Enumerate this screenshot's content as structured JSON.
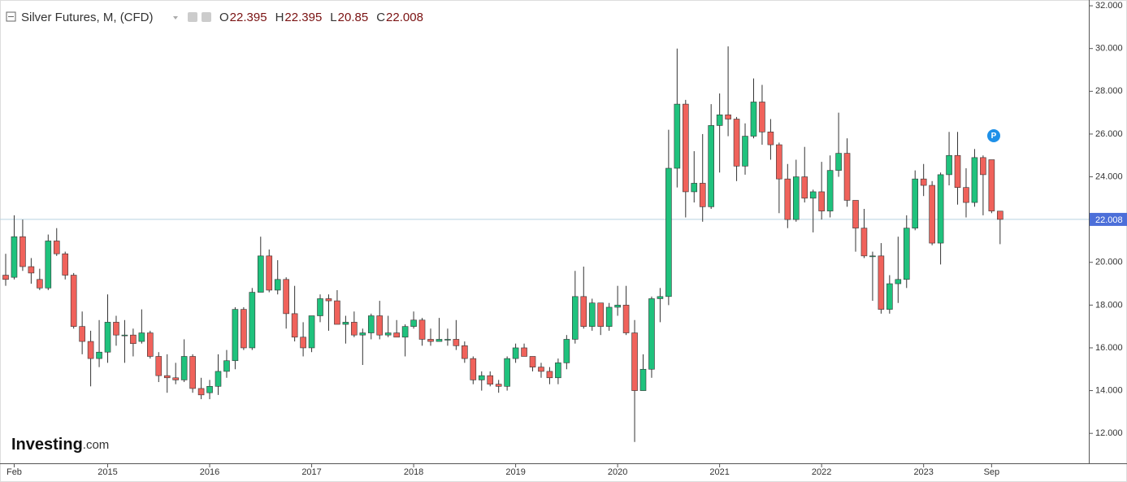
{
  "chart_data": {
    "type": "candlestick",
    "title": "Silver Futures, M, (CFD)",
    "ohlc_letters": [
      "O",
      "H",
      "L",
      "C"
    ],
    "logo": [
      "Investing",
      ".com"
    ],
    "up_color": "#1fc27d",
    "down_color": "#f0625b",
    "last_line_color": "#b9d3e0",
    "last_label_color": "#4c6fd9",
    "ylim": [
      10.6,
      32.27
    ],
    "yticks": [
      {
        "value": 12,
        "label": "12.000"
      },
      {
        "value": 14,
        "label": "14.000"
      },
      {
        "value": 16,
        "label": "16.000"
      },
      {
        "value": 18,
        "label": "18.000"
      },
      {
        "value": 20,
        "label": "20.000"
      },
      {
        "value": 22,
        "label": "22.000"
      },
      {
        "value": 24,
        "label": "24.000"
      },
      {
        "value": 26,
        "label": "26.000"
      },
      {
        "value": 28,
        "label": "28.000"
      },
      {
        "value": 30,
        "label": "30.000"
      },
      {
        "value": 32,
        "label": "32.000"
      }
    ],
    "x_labels": [
      {
        "index": 1,
        "label": "Feb"
      },
      {
        "index": 12,
        "label": "2015"
      },
      {
        "index": 24,
        "label": "2016"
      },
      {
        "index": 36,
        "label": "2017"
      },
      {
        "index": 48,
        "label": "2018"
      },
      {
        "index": 60,
        "label": "2019"
      },
      {
        "index": 72,
        "label": "2020"
      },
      {
        "index": 84,
        "label": "2021"
      },
      {
        "index": 96,
        "label": "2022"
      },
      {
        "index": 108,
        "label": "2023"
      },
      {
        "index": 116,
        "label": "Sep"
      }
    ],
    "open": [
      19.4,
      19.3,
      21.2,
      19.8,
      19.2,
      18.8,
      21.0,
      20.4,
      19.4,
      17.0,
      16.3,
      15.5,
      15.8,
      17.2,
      16.6,
      16.6,
      16.3,
      16.7,
      15.6,
      14.7,
      14.6,
      14.5,
      15.6,
      14.1,
      13.9,
      14.2,
      14.9,
      15.4,
      17.8,
      16.0,
      18.6,
      20.3,
      18.7,
      19.2,
      17.6,
      16.5,
      16.0,
      17.5,
      18.3,
      18.2,
      17.1,
      17.2,
      16.6,
      16.7,
      17.5,
      16.6,
      16.7,
      16.5,
      17.0,
      17.3,
      16.4,
      16.3,
      16.4,
      16.4,
      16.1,
      15.5,
      14.5,
      14.7,
      14.3,
      14.2,
      15.5,
      16.0,
      15.6,
      15.1,
      14.9,
      14.6,
      15.3,
      16.4,
      18.4,
      17.0,
      18.1,
      17.0,
      17.9,
      18.0,
      16.7,
      14.0,
      15.0,
      18.3,
      18.4,
      24.4,
      27.4,
      23.3,
      23.7,
      22.6,
      26.4,
      26.9,
      26.7,
      24.5,
      25.9,
      27.5,
      26.1,
      25.5,
      23.9,
      22.0,
      24.0,
      23.0,
      23.3,
      22.4,
      24.3,
      25.1,
      22.9,
      21.6,
      20.3,
      20.3,
      17.8,
      19.0,
      19.2,
      21.6,
      23.9,
      23.6,
      20.9,
      24.1,
      25.0,
      23.5,
      22.8,
      24.9,
      24.8,
      22.395
    ],
    "high": [
      20.4,
      22.2,
      22.0,
      20.2,
      19.7,
      21.3,
      21.6,
      20.5,
      19.5,
      17.7,
      16.8,
      17.3,
      18.5,
      17.5,
      17.3,
      16.9,
      17.8,
      16.8,
      15.8,
      15.7,
      15.3,
      16.4,
      15.7,
      14.6,
      14.5,
      15.7,
      15.9,
      17.9,
      17.9,
      18.8,
      21.2,
      20.6,
      20.1,
      19.3,
      18.9,
      17.2,
      17.3,
      18.5,
      18.5,
      18.7,
      17.5,
      17.7,
      16.9,
      17.6,
      18.2,
      17.5,
      17.3,
      17.1,
      17.7,
      17.4,
      16.9,
      17.4,
      16.9,
      17.3,
      16.3,
      15.6,
      14.9,
      14.9,
      14.5,
      15.6,
      16.2,
      16.2,
      15.6,
      15.3,
      15.1,
      15.5,
      16.6,
      19.6,
      19.8,
      18.3,
      18.0,
      18.1,
      18.9,
      18.9,
      17.3,
      15.7,
      18.4,
      18.8,
      26.2,
      30.0,
      27.6,
      25.2,
      26.0,
      27.4,
      27.9,
      30.1,
      26.8,
      26.5,
      28.6,
      28.3,
      26.7,
      25.6,
      24.6,
      24.8,
      25.4,
      23.4,
      24.7,
      25.0,
      27.0,
      25.8,
      22.9,
      22.5,
      20.5,
      20.9,
      19.4,
      21.2,
      22.2,
      24.3,
      24.6,
      23.8,
      24.2,
      26.1,
      26.1,
      24.4,
      25.3,
      25.0,
      24.8,
      22.395
    ],
    "low": [
      18.9,
      19.2,
      19.6,
      19.0,
      18.7,
      18.7,
      20.3,
      19.2,
      16.9,
      15.7,
      14.2,
      15.1,
      15.3,
      16.1,
      15.3,
      15.6,
      16.2,
      15.5,
      14.4,
      13.9,
      14.3,
      14.4,
      13.9,
      13.6,
      13.6,
      13.8,
      14.6,
      15.0,
      15.9,
      15.9,
      18.6,
      18.6,
      18.5,
      16.9,
      16.3,
      15.6,
      15.8,
      17.2,
      16.8,
      17.1,
      16.2,
      16.5,
      15.2,
      16.4,
      16.4,
      16.5,
      16.5,
      15.6,
      16.9,
      16.1,
      16.1,
      16.3,
      16.1,
      15.9,
      15.3,
      14.3,
      14.0,
      14.2,
      13.9,
      14.0,
      15.3,
      15.6,
      14.9,
      14.6,
      14.3,
      14.3,
      15.0,
      16.2,
      16.9,
      16.8,
      16.6,
      16.8,
      17.5,
      16.6,
      11.6,
      14.0,
      14.6,
      17.2,
      18.0,
      23.5,
      22.1,
      22.8,
      21.9,
      22.5,
      24.2,
      25.9,
      23.8,
      24.1,
      25.8,
      25.5,
      24.8,
      22.3,
      21.6,
      21.9,
      22.8,
      21.4,
      22.0,
      22.1,
      24.0,
      22.6,
      20.5,
      20.2,
      18.2,
      17.6,
      17.6,
      18.1,
      18.8,
      21.5,
      23.1,
      20.8,
      19.9,
      23.6,
      22.7,
      22.1,
      22.6,
      22.2,
      22.3,
      20.85
    ],
    "close": [
      19.2,
      21.2,
      19.8,
      19.5,
      18.8,
      21.0,
      20.4,
      19.4,
      17.0,
      16.3,
      15.5,
      15.8,
      17.2,
      16.6,
      16.6,
      16.2,
      16.7,
      15.6,
      14.7,
      14.6,
      14.5,
      15.6,
      14.1,
      13.8,
      14.2,
      14.9,
      15.4,
      17.8,
      16.0,
      18.6,
      20.3,
      18.7,
      19.2,
      17.6,
      16.5,
      16.0,
      17.5,
      18.3,
      18.2,
      17.1,
      17.2,
      16.6,
      16.7,
      17.5,
      16.6,
      16.7,
      16.5,
      17.0,
      17.3,
      16.4,
      16.3,
      16.4,
      16.4,
      16.1,
      15.5,
      14.5,
      14.7,
      14.3,
      14.2,
      15.5,
      16.0,
      15.6,
      15.1,
      14.9,
      14.6,
      15.3,
      16.4,
      18.4,
      17.0,
      18.1,
      17.0,
      17.9,
      18.0,
      16.7,
      14.0,
      15.0,
      18.3,
      18.4,
      24.4,
      27.4,
      23.3,
      23.7,
      22.6,
      26.4,
      26.9,
      26.7,
      24.5,
      25.9,
      27.5,
      26.1,
      25.5,
      23.9,
      22.0,
      24.0,
      23.0,
      23.3,
      22.4,
      24.3,
      25.1,
      22.9,
      21.6,
      20.3,
      20.3,
      17.8,
      19.0,
      19.2,
      21.6,
      23.9,
      23.6,
      20.9,
      24.1,
      25.0,
      23.5,
      22.8,
      24.9,
      24.1,
      22.4,
      22.008
    ]
  }
}
